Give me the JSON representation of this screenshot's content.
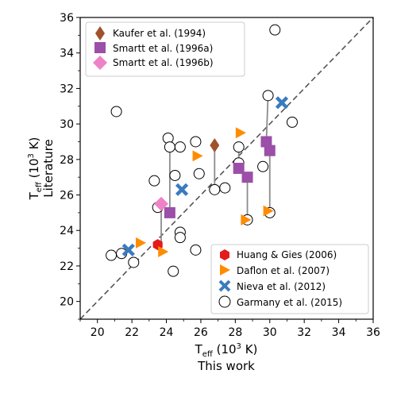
{
  "chart_data": {
    "type": "scatter",
    "xlabel": {
      "main": "T",
      "sub": "eff",
      "paren": " (10",
      "sup": "3",
      "unit": " K)",
      "line2": "This work"
    },
    "ylabel": {
      "main": "T",
      "sub": "eff",
      "paren": " (10",
      "sup": "3",
      "unit": " K)",
      "line2": "Literature"
    },
    "xlim": [
      19,
      36
    ],
    "ylim": [
      19,
      36
    ],
    "xticks": [
      "20",
      "22",
      "24",
      "26",
      "28",
      "30",
      "32",
      "34",
      "36"
    ],
    "yticks": [
      "20",
      "22",
      "24",
      "26",
      "28",
      "30",
      "32",
      "34",
      "36"
    ],
    "one_to_one_line": true,
    "legend_top_left": [
      "Kaufer et al. (1994)",
      "Smartt et al. (1996a)",
      "Smartt et al. (1996b)"
    ],
    "legend_bottom_right": [
      "Huang & Gies (2006)",
      "Daflon et al. (2007)",
      "Nieva et al. (2012)",
      "Garmany et al. (2015)"
    ],
    "colors": {
      "kaufer": "#a0522d",
      "smartt_a": "#9b4fa8",
      "smartt_b": "#ee82c8",
      "huang": "#e41a1c",
      "daflon": "#ff8c00",
      "nieva": "#3a7bbf",
      "garmany_edge": "#000000",
      "connector": "#8c8c8c",
      "diagonal": "#555555"
    },
    "series": [
      {
        "name": "Kaufer et al. (1994)",
        "marker": "diamond",
        "points": [
          [
            26.8,
            28.8
          ]
        ]
      },
      {
        "name": "Smartt et al. (1996a)",
        "marker": "square",
        "points": [
          [
            24.2,
            25.0
          ],
          [
            28.2,
            27.5
          ],
          [
            28.7,
            27.0
          ],
          [
            29.8,
            29.0
          ],
          [
            30.0,
            28.5
          ]
        ]
      },
      {
        "name": "Smartt et al. (1996b)",
        "marker": "diamond",
        "points": [
          [
            23.7,
            25.5
          ]
        ]
      },
      {
        "name": "Huang & Gies (2006)",
        "marker": "hexagon",
        "points": [
          [
            23.5,
            23.2
          ]
        ]
      },
      {
        "name": "Daflon et al. (2007)",
        "marker": "triangle-right",
        "points": [
          [
            22.5,
            23.3
          ],
          [
            23.8,
            22.8
          ],
          [
            25.8,
            28.2
          ],
          [
            28.3,
            29.5
          ],
          [
            28.6,
            24.6
          ],
          [
            29.9,
            25.1
          ]
        ]
      },
      {
        "name": "Nieva et al. (2012)",
        "marker": "x",
        "points": [
          [
            21.8,
            22.9
          ],
          [
            24.9,
            26.3
          ],
          [
            30.7,
            31.2
          ]
        ]
      },
      {
        "name": "Garmany et al. (2015)",
        "marker": "circle",
        "points": [
          [
            21.1,
            30.7
          ],
          [
            20.8,
            22.6
          ],
          [
            21.4,
            22.7
          ],
          [
            22.1,
            22.2
          ],
          [
            23.3,
            26.8
          ],
          [
            23.5,
            25.3
          ],
          [
            24.1,
            29.2
          ],
          [
            24.2,
            28.7
          ],
          [
            24.4,
            21.7
          ],
          [
            24.5,
            27.1
          ],
          [
            24.8,
            28.7
          ],
          [
            24.8,
            23.9
          ],
          [
            24.8,
            23.6
          ],
          [
            25.7,
            29.0
          ],
          [
            25.9,
            27.2
          ],
          [
            25.7,
            22.9
          ],
          [
            26.8,
            26.3
          ],
          [
            27.4,
            26.4
          ],
          [
            28.2,
            28.7
          ],
          [
            28.2,
            27.8
          ],
          [
            28.7,
            24.6
          ],
          [
            29.6,
            27.6
          ],
          [
            29.9,
            31.6
          ],
          [
            30.0,
            25.0
          ],
          [
            30.3,
            35.3
          ],
          [
            31.3,
            30.1
          ]
        ]
      }
    ],
    "connectors": [
      [
        [
          24.2,
          28.7
        ],
        [
          24.2,
          25.0
        ]
      ],
      [
        [
          26.8,
          28.8
        ],
        [
          26.8,
          26.3
        ]
      ],
      [
        [
          28.2,
          27.5
        ],
        [
          28.2,
          28.7
        ]
      ],
      [
        [
          28.7,
          27.0
        ],
        [
          28.7,
          24.6
        ]
      ],
      [
        [
          29.8,
          29.0
        ],
        [
          29.9,
          31.6
        ]
      ],
      [
        [
          30.0,
          28.5
        ],
        [
          30.0,
          25.0
        ]
      ],
      [
        [
          23.7,
          25.5
        ],
        [
          23.7,
          22.8
        ]
      ]
    ]
  }
}
